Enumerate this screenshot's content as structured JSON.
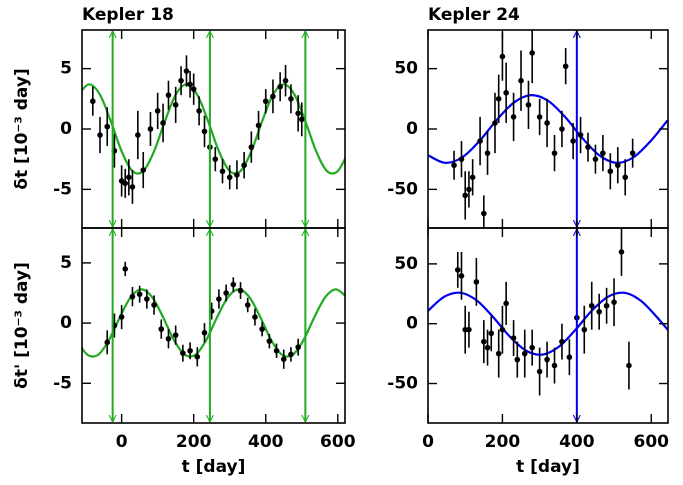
{
  "chart_data": [
    {
      "type": "scatter",
      "title": "Kepler 18",
      "title_color": "#22aa22",
      "ylabel": "δt [10⁻³ day]",
      "color": "#22aa22",
      "xlim": [
        -110,
        620
      ],
      "ylim": [
        -8.2,
        8.2
      ],
      "xticks": [
        0,
        200,
        400,
        600
      ],
      "yticks": [
        -5,
        0,
        5
      ],
      "vlines": [
        -25,
        245,
        510
      ],
      "curve": {
        "x": [
          -120,
          -90,
          -60,
          -30,
          0,
          30,
          60,
          90,
          120,
          150,
          180,
          210,
          240,
          270,
          300,
          330,
          360,
          390,
          420,
          450,
          480,
          510,
          540,
          570,
          600,
          630
        ],
        "values": [
          2.83,
          3.7,
          2.83,
          0.64,
          -1.85,
          -3.48,
          -3.48,
          -1.85,
          0.64,
          2.83,
          3.7,
          2.83,
          0.64,
          -1.85,
          -3.48,
          -3.48,
          -1.85,
          0.64,
          2.83,
          3.7,
          2.83,
          0.64,
          -1.85,
          -3.48,
          -3.48,
          -1.85
        ]
      },
      "points": {
        "x": [
          -80,
          -60,
          -40,
          -20,
          0,
          10,
          20,
          30,
          45,
          60,
          80,
          100,
          115,
          130,
          150,
          165,
          180,
          190,
          200,
          215,
          230,
          245,
          260,
          280,
          300,
          320,
          340,
          360,
          380,
          400,
          420,
          440,
          455,
          470,
          490,
          500
        ],
        "values": [
          2.3,
          -0.5,
          0.2,
          -1.8,
          -4.3,
          -4.5,
          -4.0,
          -4.8,
          -0.5,
          -3.4,
          0,
          1.5,
          0.5,
          2.8,
          2.0,
          4.0,
          4.8,
          3.7,
          3.3,
          1.5,
          -0.2,
          -1.5,
          -2.5,
          -3.5,
          -4.0,
          -3.8,
          -3.0,
          -1.5,
          0.3,
          2.3,
          2.7,
          3.5,
          4.0,
          2.5,
          1.3,
          0.8
        ],
        "errors": [
          1.2,
          1.5,
          1.6,
          1.4,
          1.3,
          1.2,
          1.5,
          1.4,
          2.0,
          1.5,
          1.4,
          1.5,
          1.6,
          1.2,
          1.5,
          1.2,
          1.3,
          1.1,
          1.3,
          1.2,
          1.3,
          1.2,
          1.0,
          1.0,
          1.0,
          1.2,
          1.1,
          1.3,
          1.2,
          1.0,
          1.4,
          1.2,
          1.3,
          1.2,
          1.5,
          1.4
        ]
      }
    },
    {
      "type": "scatter",
      "title": "Kepler 24",
      "title_color": "#0000ee",
      "color": "#0000ee",
      "xlim": [
        0,
        645
      ],
      "ylim": [
        -82,
        82
      ],
      "xticks": [
        0,
        200,
        400,
        600
      ],
      "yticks": [
        -50,
        0,
        50
      ],
      "vlines": [
        400
      ],
      "curve": {
        "x": [
          0,
          46,
          92,
          138,
          184,
          230,
          276,
          322,
          368,
          414,
          460,
          506,
          552,
          598,
          644
        ],
        "values": [
          -21.7,
          -28.0,
          -23.5,
          -10.1,
          7.2,
          21.7,
          28.0,
          23.5,
          10.1,
          -7.2,
          -21.7,
          -28.0,
          -23.5,
          -10.1,
          7.2
        ]
      },
      "points": {
        "x": [
          70,
          90,
          100,
          110,
          120,
          140,
          150,
          160,
          180,
          190,
          200,
          210,
          230,
          250,
          270,
          280,
          300,
          320,
          340,
          360,
          370,
          390,
          410,
          430,
          450,
          470,
          490,
          510,
          530,
          550
        ],
        "values": [
          -30,
          -25,
          -55,
          -50,
          -40,
          -10,
          -70,
          -20,
          5,
          25,
          60,
          30,
          10,
          40,
          20,
          63,
          10,
          5,
          -20,
          0,
          52,
          -10,
          -5,
          -15,
          -25,
          -20,
          -35,
          -30,
          -40,
          -20
        ],
        "errors": [
          12,
          15,
          20,
          15,
          15,
          20,
          15,
          18,
          25,
          20,
          20,
          25,
          20,
          25,
          20,
          25,
          15,
          20,
          15,
          15,
          15,
          15,
          15,
          12,
          12,
          15,
          15,
          15,
          15,
          12
        ]
      }
    },
    {
      "type": "scatter",
      "ylabel": "δt' [10⁻³ day]",
      "xlabel": "t [day]",
      "color": "#22aa22",
      "xlim": [
        -110,
        620
      ],
      "ylim": [
        -8.3,
        7.9
      ],
      "xticks": [
        0,
        200,
        400,
        600
      ],
      "yticks": [
        -5,
        0,
        5
      ],
      "vlines": [
        -25,
        245,
        510
      ],
      "curve": {
        "x": [
          -125,
          -95,
          -65,
          -35,
          -5,
          25,
          55,
          85,
          115,
          145,
          175,
          205,
          235,
          265,
          295,
          325,
          355,
          385,
          415,
          445,
          475,
          505,
          535,
          565,
          595,
          625
        ],
        "values": [
          -1.4,
          -2.63,
          -2.63,
          -1.4,
          0.49,
          2.14,
          2.8,
          2.14,
          0.49,
          -1.4,
          -2.63,
          -2.63,
          -1.4,
          0.49,
          2.14,
          2.8,
          2.14,
          0.49,
          -1.4,
          -2.63,
          -2.63,
          -1.4,
          0.49,
          2.14,
          2.8,
          2.14
        ]
      },
      "points": {
        "x": [
          -40,
          -20,
          0,
          10,
          30,
          50,
          70,
          90,
          110,
          130,
          150,
          170,
          190,
          210,
          230,
          250,
          270,
          290,
          310,
          330,
          350,
          370,
          390,
          410,
          430,
          450,
          470,
          490
        ],
        "values": [
          -1.6,
          -0.2,
          0.5,
          4.5,
          2.2,
          2.4,
          2.0,
          1.5,
          -0.5,
          -1.3,
          -1.0,
          -2.5,
          -2.3,
          -2.8,
          -0.8,
          1.0,
          2.0,
          2.5,
          3.2,
          2.7,
          1.5,
          0.5,
          -0.5,
          -1.5,
          -2.3,
          -3.0,
          -2.6,
          -2.0
        ],
        "errors": [
          1,
          1,
          1,
          0.6,
          0.8,
          0.7,
          0.8,
          0.8,
          0.8,
          0.8,
          0.8,
          0.7,
          0.7,
          0.8,
          0.8,
          0.7,
          0.8,
          0.7,
          0.6,
          0.7,
          0.6,
          0.7,
          0.6,
          0.6,
          0.6,
          0.8,
          0.6,
          0.7
        ]
      }
    },
    {
      "type": "scatter",
      "xlabel": "t [day]",
      "color": "#0000ee",
      "xlim": [
        0,
        645
      ],
      "ylim": [
        -83,
        80
      ],
      "xticks": [
        0,
        200,
        400,
        600
      ],
      "yticks": [
        -50,
        0,
        50
      ],
      "vlines": [
        400
      ],
      "curve": {
        "x": [
          0,
          44,
          88,
          132,
          176,
          220,
          264,
          308,
          352,
          396,
          440,
          484,
          528,
          572,
          616,
          660
        ],
        "values": [
          10.8,
          22.6,
          25.8,
          19.2,
          5.2,
          -10.8,
          -22.6,
          -25.8,
          -19.2,
          -5.2,
          10.8,
          22.6,
          25.8,
          19.2,
          5.2,
          -10.8
        ]
      },
      "points": {
        "x": [
          80,
          90,
          100,
          110,
          130,
          150,
          160,
          170,
          190,
          200,
          210,
          230,
          240,
          260,
          280,
          300,
          320,
          340,
          360,
          380,
          400,
          420,
          440,
          460,
          480,
          500,
          520,
          540
        ],
        "values": [
          45,
          40,
          -5,
          -5,
          35,
          -15,
          -20,
          -8,
          -25,
          -5,
          17,
          -12,
          -30,
          -25,
          -20,
          -40,
          -30,
          -35,
          -15,
          -28,
          5,
          -5,
          15,
          10,
          15,
          18,
          60,
          -35
        ],
        "errors": [
          15,
          20,
          20,
          15,
          20,
          18,
          15,
          15,
          20,
          20,
          18,
          15,
          15,
          20,
          15,
          20,
          15,
          15,
          15,
          15,
          20,
          20,
          20,
          15,
          15,
          20,
          20,
          20
        ]
      }
    }
  ]
}
